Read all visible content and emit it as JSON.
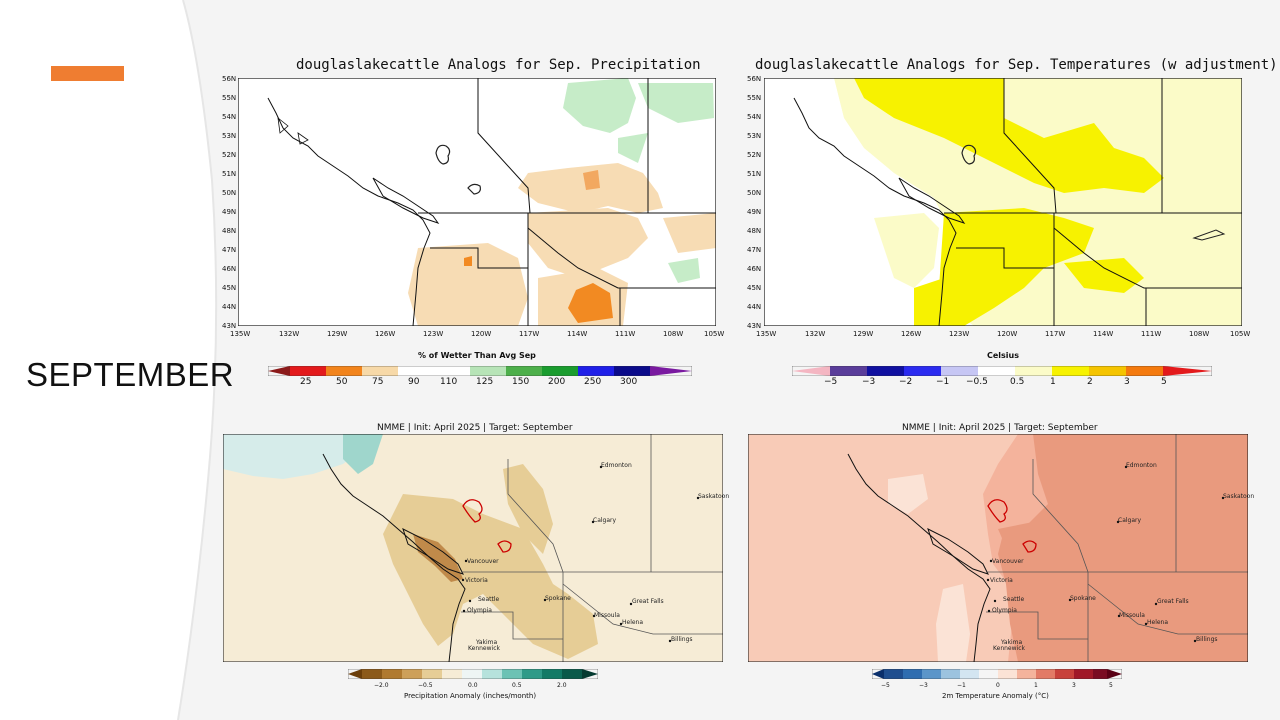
{
  "slide": {
    "section_title": "SEPTEMBER",
    "accent_color": "#ef7d31"
  },
  "precip_analog": {
    "title": "douglaslakecattle Analogs for Sep. Precipitation",
    "colorbar_title": "% of Wetter Than Avg Sep",
    "colorbar_ticks": [
      "25",
      "50",
      "75",
      "90",
      "110",
      "125",
      "150",
      "200",
      "250",
      "300"
    ]
  },
  "temp_analog": {
    "title": "douglaslakecattle Analogs for Sep. Temperatures (w adjustment)",
    "colorbar_title": "Celsius",
    "colorbar_ticks": [
      "−5",
      "−3",
      "−2",
      "−1",
      "−0.5",
      "0.5",
      "1",
      "2",
      "3",
      "5"
    ]
  },
  "lat_labels": [
    "56N",
    "55N",
    "54N",
    "53N",
    "52N",
    "51N",
    "50N",
    "49N",
    "48N",
    "47N",
    "46N",
    "45N",
    "44N",
    "43N"
  ],
  "lon_labels": [
    "135W",
    "132W",
    "129W",
    "126W",
    "123W",
    "120W",
    "117W",
    "114W",
    "111W",
    "108W",
    "105W"
  ],
  "nmme_precip": {
    "title": "NMME | Init: April 2025 | Target: September",
    "colorbar_title": "Precipitation Anomaly (inches/month)",
    "colorbar_ticks": [
      "−2.0",
      "−0.5",
      "0.0",
      "0.5",
      "2.0"
    ]
  },
  "nmme_temp": {
    "title": "NMME | Init: April 2025 | Target: September",
    "colorbar_title": "2m Temperature Anomaly (°C)",
    "colorbar_ticks": [
      "−5",
      "−3",
      "−1",
      "0",
      "1",
      "3",
      "5"
    ]
  },
  "cities": {
    "edmonton": "Edmonton",
    "saskatoon": "Saskatoon",
    "calgary": "Calgary",
    "vancouver": "Vancouver",
    "victoria": "Victoria",
    "seattle": "Seattle",
    "olympia": "Olympia",
    "spokane": "Spokane",
    "missoula": "Missoula",
    "great_falls": "Great Falls",
    "helena": "Helena",
    "billings": "Billings",
    "yakima": "Yakima",
    "kennewick": "Kennewick"
  }
}
